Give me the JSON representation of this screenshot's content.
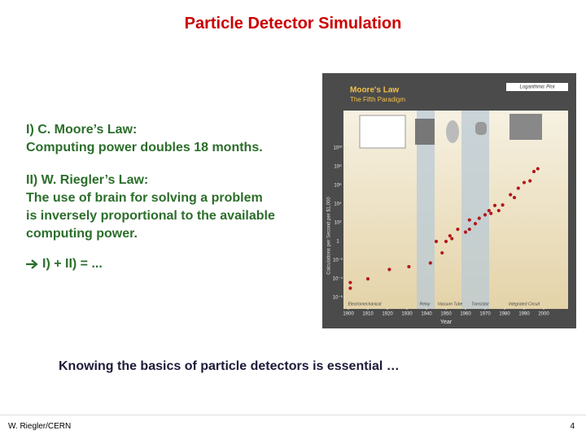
{
  "slide": {
    "title": "Particle Detector Simulation",
    "law1": {
      "heading": "I) C. Moore’s Law:",
      "text": "Computing power doubles 18 months."
    },
    "law2": {
      "heading": "II) W. Riegler’s Law:",
      "lines": [
        "The use of brain for solving a problem",
        "is inversely proportional to the available",
        "computing power."
      ]
    },
    "conclusion": "I) + II) = ...",
    "statement": "Knowing the basics of particle detectors is essential …",
    "author": "W. Riegler/CERN",
    "page": "4"
  },
  "chart_data": {
    "type": "scatter",
    "title": "Moore's Law",
    "subtitle": "The Fifth Paradigm",
    "note": "Logarithmic Plot",
    "x_label": "Year",
    "y_label": "Calculations per Second per $1,000",
    "paradigms": [
      "Electromechanical",
      "Relay",
      "Vacuum Tube",
      "Transistor",
      "Integrated Circuit"
    ],
    "log_y": true,
    "color": "#b3181c",
    "xlim": [
      1898,
      2012
    ],
    "xticks": [
      1900,
      1910,
      1920,
      1930,
      1940,
      1950,
      1960,
      1970,
      1980,
      1990,
      2000
    ],
    "ylim": [
      1e-07,
      100000000000.0
    ],
    "yticks": [
      {
        "value": 10000000000.0,
        "label": "10¹⁰"
      },
      {
        "value": 100000000.0,
        "label": "10⁸"
      },
      {
        "value": 1000000.0,
        "label": "10⁶"
      },
      {
        "value": 10000.0,
        "label": "10⁴"
      },
      {
        "value": 100,
        "label": "10²"
      },
      1,
      {
        "value": 0.01,
        "label": "10⁻²"
      },
      {
        "value": 0.0001,
        "label": "10⁻⁴"
      },
      {
        "value": 1e-06,
        "label": "10⁻⁶"
      }
    ],
    "x": [
      1901,
      1901,
      1910,
      1921,
      1931,
      1942,
      1945,
      1948,
      1950,
      1952,
      1953,
      1956,
      1960,
      1962,
      1962,
      1965,
      1967,
      1970,
      1972,
      1973,
      1975,
      1977,
      1979,
      1983,
      1985,
      1987,
      1990,
      1993,
      1995,
      1997
    ],
    "values": [
      1e-05,
      4e-05,
      0.0001,
      0.001,
      0.002,
      0.005,
      1,
      0.06,
      1,
      4,
      2,
      20,
      10,
      200,
      20,
      80,
      300,
      700,
      2000,
      1000,
      7000,
      2000,
      8000,
      100000,
      50000,
      500000,
      2000000,
      3000000,
      30000000,
      60000000
    ]
  }
}
